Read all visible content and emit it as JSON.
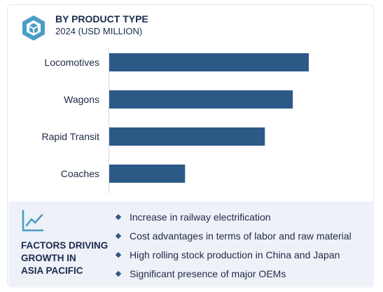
{
  "header": {
    "title": "BY PRODUCT TYPE",
    "subtitle": "2024 (USD MILLION)"
  },
  "colors": {
    "bar": "#2d5987",
    "accent": "#4a9ec4",
    "heading": "#1a2b4c",
    "panel": "#eef1f8"
  },
  "icons": {
    "logo": "cube-logo-icon",
    "trend": "trend-line-icon",
    "bullet": "diamond-bullet-icon"
  },
  "chart_data": {
    "type": "bar",
    "orientation": "horizontal",
    "categories": [
      "Locomotives",
      "Wagons",
      "Rapid Transit",
      "Coaches"
    ],
    "values": [
      100,
      92,
      78,
      38
    ],
    "title": "BY PRODUCT TYPE",
    "subtitle": "2024 (USD MILLION)",
    "xlabel": "",
    "ylabel": "",
    "xlim": [
      0,
      100
    ],
    "grid": false,
    "legend": "none",
    "value_axis_labels": false
  },
  "factors": {
    "heading_lines": [
      "FACTORS DRIVING",
      "GROWTH IN",
      "ASIA PACIFIC"
    ],
    "items": [
      "Increase in railway electrification",
      "Cost advantages in terms of labor and raw material",
      "High rolling stock production in China and Japan",
      "Significant presence of major OEMs"
    ]
  }
}
